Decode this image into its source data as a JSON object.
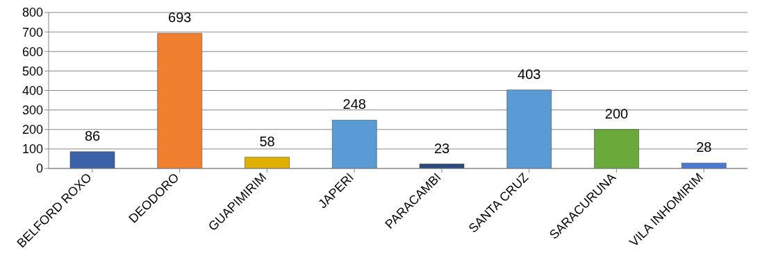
{
  "chart_data": {
    "type": "bar",
    "categories": [
      "BELFORD ROXO",
      "DEODORO",
      "GUAPIMIRIM",
      "JAPERI",
      "PARACAMBI",
      "SANTA CRUZ",
      "SARACURUNA",
      "VILA INHOMIRIM"
    ],
    "values": [
      86,
      693,
      58,
      248,
      23,
      403,
      200,
      28
    ],
    "colors": [
      "#3a62a8",
      "#f08030",
      "#e0b000",
      "#5a9ad5",
      "#2a4a80",
      "#5a9ad5",
      "#6aaa3a",
      "#4a7ad0"
    ],
    "ylim": [
      0,
      800
    ],
    "yticks": [
      0,
      100,
      200,
      300,
      400,
      500,
      600,
      700,
      800
    ],
    "grid": "y",
    "data_labels": true
  }
}
